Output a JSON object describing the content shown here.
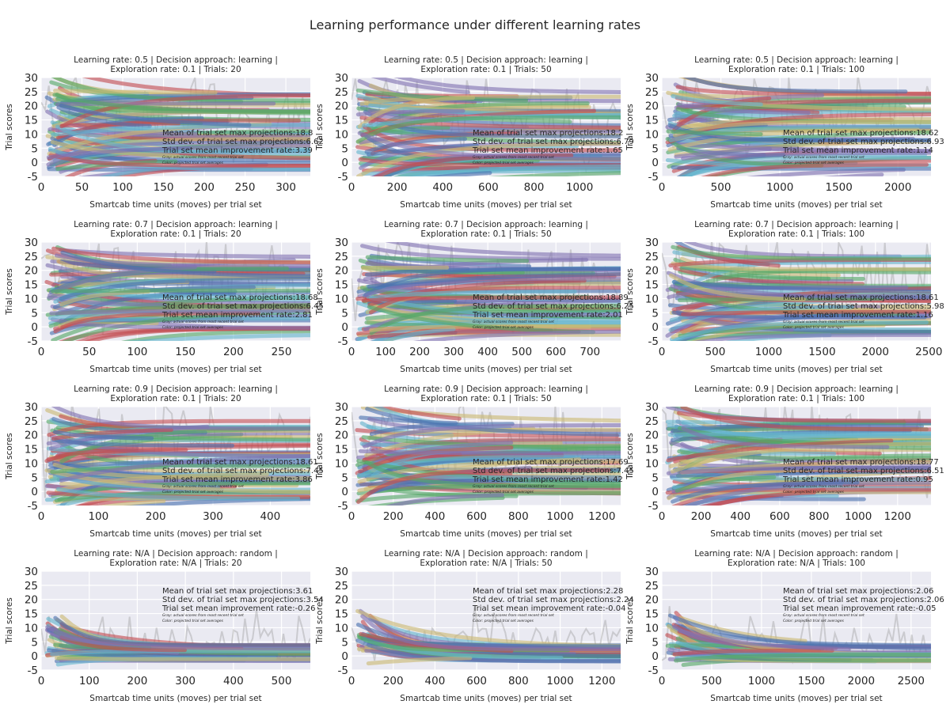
{
  "figure": {
    "title": "Learning performance under different learning rates"
  },
  "palette": [
    "#4c72b0",
    "#55a868",
    "#c44e52",
    "#8172b2",
    "#ccb974",
    "#64b5cd"
  ],
  "chart_data": [
    {
      "type": "line",
      "title_line1": "Learning rate: 0.5 | Decision approach: learning |",
      "title_line2": "Exploration rate: 0.1 | Trials: 20",
      "xlabel": "Smartcab time units (moves) per trial set",
      "ylabel": "Trial scores",
      "xlim": [
        0,
        330
      ],
      "ylim": [
        -5,
        30
      ],
      "xticks": [
        0,
        50,
        100,
        150,
        200,
        250,
        300
      ],
      "yticks": [
        -5,
        0,
        5,
        10,
        15,
        20,
        25,
        30
      ],
      "grid": true,
      "behavior": "learning",
      "stats": {
        "line1": "Mean of trial set max projections:18.8",
        "line2": "Std dev. of trial set max projections:6.62",
        "line3": "Trial set mean improvement rate:3.39",
        "note1": "Gray: actual scores from most recent trial set",
        "note2": "Color: projected trial set averages"
      }
    },
    {
      "type": "line",
      "title_line1": "Learning rate: 0.5 | Decision approach: learning |",
      "title_line2": "Exploration rate: 0.1 | Trials: 50",
      "xlabel": "Smartcab time units (moves) per trial set",
      "ylabel": "Trial scores",
      "xlim": [
        0,
        1180
      ],
      "ylim": [
        -5,
        30
      ],
      "xticks": [
        0,
        200,
        400,
        600,
        800,
        1000
      ],
      "yticks": [
        -5,
        0,
        5,
        10,
        15,
        20,
        25,
        30
      ],
      "grid": true,
      "behavior": "learning",
      "stats": {
        "line1": "Mean of trial set max projections:18.2",
        "line2": "Std dev. of trial set max projections:6.79",
        "line3": "Trial set mean improvement rate:1.65",
        "note1": "Gray: actual scores from most recent trial set",
        "note2": "Color: projected trial set averages"
      }
    },
    {
      "type": "line",
      "title_line1": "Learning rate: 0.5 | Decision approach: learning |",
      "title_line2": "Exploration rate: 0.1 | Trials: 100",
      "xlabel": "Smartcab time units (moves) per trial set",
      "ylabel": "Trial scores",
      "xlim": [
        0,
        2280
      ],
      "ylim": [
        -5,
        30
      ],
      "xticks": [
        0,
        500,
        1000,
        1500,
        2000
      ],
      "yticks": [
        -5,
        0,
        5,
        10,
        15,
        20,
        25,
        30
      ],
      "grid": true,
      "behavior": "learning",
      "stats": {
        "line1": "Mean of trial set max projections:18.62",
        "line2": "Std dev. of trial set max projections:6.93",
        "line3": "Trial set mean improvement rate:1.14",
        "note1": "Gray: actual scores from most recent trial set",
        "note2": "Color: projected trial set averages"
      }
    },
    {
      "type": "line",
      "title_line1": "Learning rate: 0.7 | Decision approach: learning |",
      "title_line2": "Exploration rate: 0.1 | Trials: 20",
      "xlabel": "Smartcab time units (moves) per trial set",
      "ylabel": "Trial scores",
      "xlim": [
        0,
        280
      ],
      "ylim": [
        -5,
        30
      ],
      "xticks": [
        0,
        50,
        100,
        150,
        200,
        250
      ],
      "yticks": [
        -5,
        0,
        5,
        10,
        15,
        20,
        25,
        30
      ],
      "grid": true,
      "behavior": "learning",
      "stats": {
        "line1": "Mean of trial set max projections:18.68",
        "line2": "Std dev. of trial set max projections:6.45",
        "line3": "Trial set mean improvement rate:2.81",
        "note1": "Gray: actual scores from most recent trial set",
        "note2": "Color: projected trial set averages"
      }
    },
    {
      "type": "line",
      "title_line1": "Learning rate: 0.7 | Decision approach: learning |",
      "title_line2": "Exploration rate: 0.1 | Trials: 50",
      "xlabel": "Smartcab time units (moves) per trial set",
      "ylabel": "Trial scores",
      "xlim": [
        0,
        790
      ],
      "ylim": [
        -5,
        30
      ],
      "xticks": [
        0,
        100,
        200,
        300,
        400,
        500,
        600,
        700
      ],
      "yticks": [
        -5,
        0,
        5,
        10,
        15,
        20,
        25,
        30
      ],
      "grid": true,
      "behavior": "learning",
      "stats": {
        "line1": "Mean of trial set max projections:18.89",
        "line2": "Std dev. of trial set max projections:6.25",
        "line3": "Trial set mean improvement rate:2.01",
        "note1": "Gray: actual scores from most recent trial set",
        "note2": "Color: projected trial set averages"
      }
    },
    {
      "type": "line",
      "title_line1": "Learning rate: 0.7 | Decision approach: learning |",
      "title_line2": "Exploration rate: 0.1 | Trials: 100",
      "xlabel": "Smartcab time units (moves) per trial set",
      "ylabel": "Trial scores",
      "xlim": [
        0,
        2520
      ],
      "ylim": [
        -5,
        30
      ],
      "xticks": [
        0,
        500,
        1000,
        1500,
        2000,
        2500
      ],
      "yticks": [
        -5,
        0,
        5,
        10,
        15,
        20,
        25,
        30
      ],
      "grid": true,
      "behavior": "learning",
      "stats": {
        "line1": "Mean of trial set max projections:18.61",
        "line2": "Std dev. of trial set max projections:5.98",
        "line3": "Trial set mean improvement rate:1.16",
        "note1": "Gray: actual scores from most recent trial set",
        "note2": "Color: projected trial set averages"
      }
    },
    {
      "type": "line",
      "title_line1": "Learning rate: 0.9 | Decision approach: learning |",
      "title_line2": "Exploration rate: 0.1 | Trials: 20",
      "xlabel": "Smartcab time units (moves) per trial set",
      "ylabel": "Trial scores",
      "xlim": [
        0,
        470
      ],
      "ylim": [
        -5,
        30
      ],
      "xticks": [
        0,
        100,
        200,
        300,
        400
      ],
      "yticks": [
        -5,
        0,
        5,
        10,
        15,
        20,
        25,
        30
      ],
      "grid": true,
      "behavior": "learning",
      "stats": {
        "line1": "Mean of trial set max projections:18.61",
        "line2": "Std dev. of trial set max projections:7.45",
        "line3": "Trial set mean improvement rate:3.86",
        "note1": "Gray: actual scores from most recent trial set",
        "note2": "Color: projected trial set averages"
      }
    },
    {
      "type": "line",
      "title_line1": "Learning rate: 0.9 | Decision approach: learning |",
      "title_line2": "Exploration rate: 0.1 | Trials: 50",
      "xlabel": "Smartcab time units (moves) per trial set",
      "ylabel": "Trial scores",
      "xlim": [
        0,
        1290
      ],
      "ylim": [
        -5,
        30
      ],
      "xticks": [
        0,
        200,
        400,
        600,
        800,
        1000,
        1200
      ],
      "yticks": [
        -5,
        0,
        5,
        10,
        15,
        20,
        25,
        30
      ],
      "grid": true,
      "behavior": "learning",
      "stats": {
        "line1": "Mean of trial set max projections:17.69",
        "line2": "Std dev. of trial set max projections:7.45",
        "line3": "Trial set mean improvement rate:1.42",
        "note1": "Gray: actual scores from most recent trial set",
        "note2": "Color: projected trial set averages"
      }
    },
    {
      "type": "line",
      "title_line1": "Learning rate: 0.9 | Decision approach: learning |",
      "title_line2": "Exploration rate: 0.1 | Trials: 100",
      "xlabel": "Smartcab time units (moves) per trial set",
      "ylabel": "Trial scores",
      "xlim": [
        0,
        1370
      ],
      "ylim": [
        -5,
        30
      ],
      "xticks": [
        0,
        200,
        400,
        600,
        800,
        1000,
        1200
      ],
      "yticks": [
        -5,
        0,
        5,
        10,
        15,
        20,
        25,
        30
      ],
      "grid": true,
      "behavior": "learning",
      "stats": {
        "line1": "Mean of trial set max projections:18.77",
        "line2": "Std dev. of trial set max projections:6.51",
        "line3": "Trial set mean improvement rate:0.95",
        "note1": "Gray: actual scores from most recent trial set",
        "note2": "Color: projected trial set averages"
      }
    },
    {
      "type": "line",
      "title_line1": "Learning rate: N/A | Decision approach: random |",
      "title_line2": "Exploration rate: N/A | Trials: 20",
      "xlabel": "Smartcab time units (moves) per trial set",
      "ylabel": "Trial scores",
      "xlim": [
        0,
        560
      ],
      "ylim": [
        -5,
        30
      ],
      "xticks": [
        0,
        100,
        200,
        300,
        400,
        500
      ],
      "yticks": [
        -5,
        0,
        5,
        10,
        15,
        20,
        25,
        30
      ],
      "grid": true,
      "behavior": "random",
      "stats": {
        "line1": "Mean of trial set max projections:3.61",
        "line2": "Std dev. of trial set max projections:3.54",
        "line3": "Trial set mean improvement rate:-0.26",
        "note1": "Gray: actual scores from most recent trial set",
        "note2": "Color: projected trial set averages"
      }
    },
    {
      "type": "line",
      "title_line1": "Learning rate: N/A | Decision approach: random |",
      "title_line2": "Exploration rate: N/A | Trials: 50",
      "xlabel": "Smartcab time units (moves) per trial set",
      "ylabel": "Trial scores",
      "xlim": [
        0,
        1290
      ],
      "ylim": [
        -5,
        30
      ],
      "xticks": [
        0,
        200,
        400,
        600,
        800,
        1000,
        1200
      ],
      "yticks": [
        -5,
        0,
        5,
        10,
        15,
        20,
        25,
        30
      ],
      "grid": true,
      "behavior": "random",
      "stats": {
        "line1": "Mean of trial set max projections:2.28",
        "line2": "Std dev. of trial set max projections:2.24",
        "line3": "Trial set mean improvement rate:-0.04",
        "note1": "Gray: actual scores from most recent trial set",
        "note2": "Color: projected trial set averages"
      }
    },
    {
      "type": "line",
      "title_line1": "Learning rate: N/A | Decision approach: random |",
      "title_line2": "Exploration rate: N/A | Trials: 100",
      "xlabel": "Smartcab time units (moves) per trial set",
      "ylabel": "Trial scores",
      "xlim": [
        0,
        2700
      ],
      "ylim": [
        -5,
        30
      ],
      "xticks": [
        0,
        500,
        1000,
        1500,
        2000,
        2500
      ],
      "yticks": [
        -5,
        0,
        5,
        10,
        15,
        20,
        25,
        30
      ],
      "grid": true,
      "behavior": "random",
      "stats": {
        "line1": "Mean of trial set max projections:2.06",
        "line2": "Std dev. of trial set max projections:2.06",
        "line3": "Trial set mean improvement rate:-0.05",
        "note1": "Gray: actual scores from most recent trial set",
        "note2": "Color: projected trial set averages"
      }
    }
  ]
}
